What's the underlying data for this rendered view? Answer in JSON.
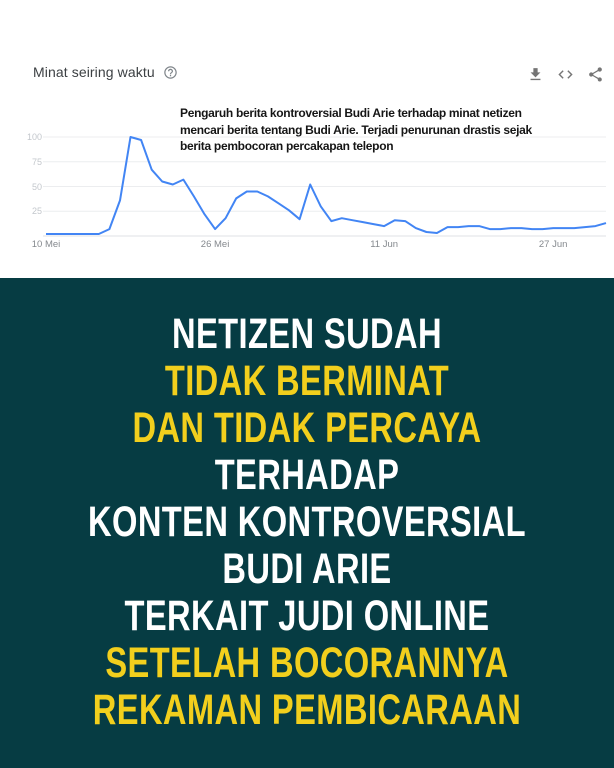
{
  "trends": {
    "title": "Minat seiring waktu",
    "help_icon": "help-circle",
    "toolbar": [
      {
        "name": "download",
        "tooltip": "Download"
      },
      {
        "name": "embed",
        "tooltip": "Embed"
      },
      {
        "name": "share",
        "tooltip": "Share"
      }
    ],
    "annotation": "Pengaruh berita kontroversial Budi Arie terhadap minat netizen mencari berita tentang Budi Arie. Terjadi penurunan drastis sejak berita pembocoran percakapan telepon"
  },
  "chart_data": {
    "type": "line",
    "title": "Minat seiring waktu",
    "xlabel": "",
    "ylabel": "",
    "ylim": [
      0,
      100
    ],
    "grid": true,
    "line_color": "#4285f4",
    "grid_color": "#ecedef",
    "axis_color": "#dfe1e5",
    "x_tick_labels": [
      "10 Mei",
      "26 Mei",
      "11 Jun",
      "27 Jun"
    ],
    "x_tick_indices": [
      0,
      16,
      32,
      48
    ],
    "y_tick_labels": [
      "100",
      "75",
      "50",
      "25"
    ],
    "y_tick_values": [
      100,
      75,
      50,
      25
    ],
    "series": [
      {
        "name": "interest-over-time",
        "values": [
          2,
          2,
          2,
          2,
          2,
          2,
          7,
          36,
          100,
          97,
          67,
          55,
          52,
          57,
          40,
          22,
          7,
          18,
          38,
          45,
          45,
          40,
          33,
          26,
          17,
          52,
          30,
          15,
          18,
          16,
          14,
          12,
          10,
          16,
          15,
          8,
          4,
          3,
          9,
          9,
          10,
          10,
          7,
          7,
          8,
          8,
          7,
          7,
          8,
          8,
          8,
          9,
          10,
          13
        ]
      }
    ]
  },
  "poster": {
    "background": "#063c43",
    "colors": {
      "white": "#ffffff",
      "yellow": "#F2CF1D"
    },
    "lines": [
      {
        "text": "NETIZEN SUDAH",
        "color": "white"
      },
      {
        "text": "TIDAK BERMINAT",
        "color": "yellow"
      },
      {
        "text": "DAN TIDAK PERCAYA",
        "color": "yellow"
      },
      {
        "text": "TERHADAP",
        "color": "white"
      },
      {
        "text": "KONTEN KONTROVERSIAL",
        "color": "white"
      },
      {
        "text": "BUDI ARIE",
        "color": "white"
      },
      {
        "text": "TERKAIT JUDI ONLINE",
        "color": "white"
      },
      {
        "text": "SETELAH BOCORANNYA",
        "color": "yellow"
      },
      {
        "text": "REKAMAN PEMBICARAAN",
        "color": "yellow"
      }
    ]
  }
}
